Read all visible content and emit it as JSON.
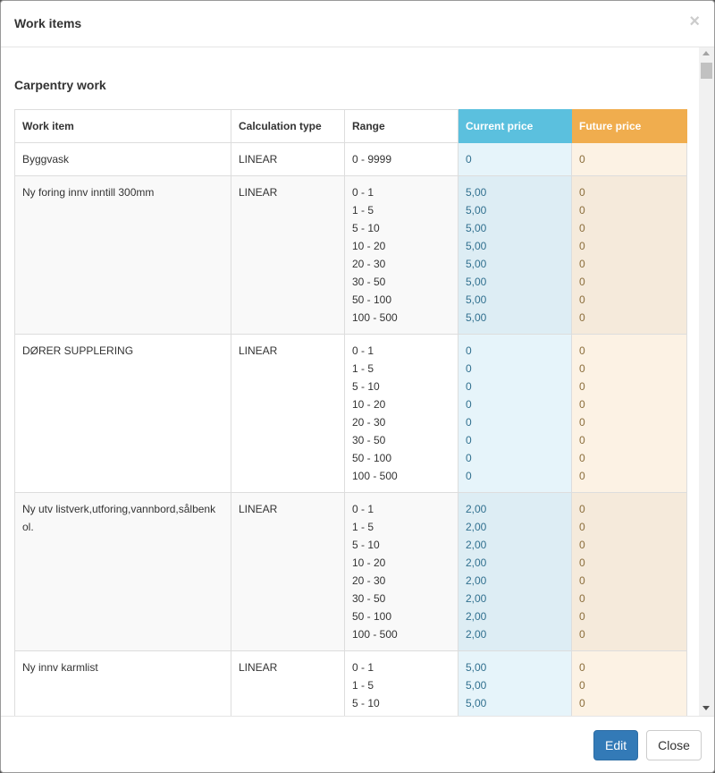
{
  "modal": {
    "title": "Work items",
    "close_symbol": "×"
  },
  "section_title": "Carpentry work",
  "table": {
    "headers": [
      "Work item",
      "Calculation type",
      "Range",
      "Current price",
      "Future price"
    ],
    "rows": [
      {
        "item": "Byggvask",
        "calc": "LINEAR",
        "ranges": [
          "0 - 9999"
        ],
        "current": [
          "0"
        ],
        "future": [
          "0"
        ]
      },
      {
        "item": "Ny foring innv inntill 300mm",
        "calc": "LINEAR",
        "ranges": [
          "0 - 1",
          "1 - 5",
          "5 - 10",
          "10 - 20",
          "20 - 30",
          "30 - 50",
          "50 - 100",
          "100 - 500"
        ],
        "current": [
          "5,00",
          "5,00",
          "5,00",
          "5,00",
          "5,00",
          "5,00",
          "5,00",
          "5,00"
        ],
        "future": [
          "0",
          "0",
          "0",
          "0",
          "0",
          "0",
          "0",
          "0"
        ]
      },
      {
        "item": "DØRER SUPPLERING",
        "calc": "LINEAR",
        "ranges": [
          "0 - 1",
          "1 - 5",
          "5 - 10",
          "10 - 20",
          "20 - 30",
          "30 - 50",
          "50 - 100",
          "100 - 500"
        ],
        "current": [
          "0",
          "0",
          "0",
          "0",
          "0",
          "0",
          "0",
          "0"
        ],
        "future": [
          "0",
          "0",
          "0",
          "0",
          "0",
          "0",
          "0",
          "0"
        ]
      },
      {
        "item": "Ny utv listverk,utforing,vannbord,sålbenk ol.",
        "calc": "LINEAR",
        "ranges": [
          "0 - 1",
          "1 - 5",
          "5 - 10",
          "10 - 20",
          "20 - 30",
          "30 - 50",
          "50 - 100",
          "100 - 500"
        ],
        "current": [
          "2,00",
          "2,00",
          "2,00",
          "2,00",
          "2,00",
          "2,00",
          "2,00",
          "2,00"
        ],
        "future": [
          "0",
          "0",
          "0",
          "0",
          "0",
          "0",
          "0",
          "0"
        ]
      },
      {
        "item": "Ny innv karmlist",
        "calc": "LINEAR",
        "ranges": [
          "0 - 1",
          "1 - 5",
          "5 - 10"
        ],
        "current": [
          "5,00",
          "5,00",
          "5,00"
        ],
        "future": [
          "0",
          "0",
          "0"
        ]
      }
    ]
  },
  "footer": {
    "edit_label": "Edit",
    "close_label": "Close"
  },
  "colors": {
    "current_header": "#5bc0de",
    "future_header": "#f0ad4e",
    "primary": "#337ab7"
  }
}
